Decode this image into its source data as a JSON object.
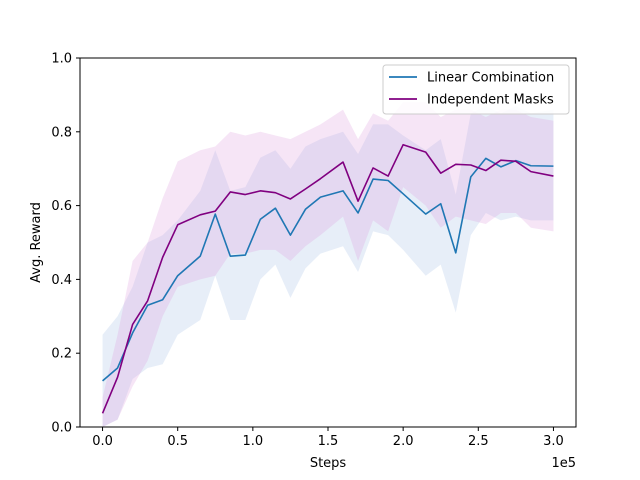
{
  "chart_data": {
    "type": "line",
    "title": "",
    "xlabel": "Steps",
    "ylabel": "Avg. Reward",
    "x_offset_label": "1e5",
    "xlim": [
      -0.15,
      3.15
    ],
    "ylim": [
      0.0,
      1.0
    ],
    "xticks": [
      0.0,
      0.5,
      1.0,
      1.5,
      2.0,
      2.5,
      3.0
    ],
    "xtick_labels": [
      "0.0",
      "0.5",
      "1.0",
      "1.5",
      "2.0",
      "2.5",
      "3.0"
    ],
    "yticks": [
      0.0,
      0.2,
      0.4,
      0.6,
      0.8,
      1.0
    ],
    "ytick_labels": [
      "0.0",
      "0.2",
      "0.4",
      "0.6",
      "0.8",
      "1.0"
    ],
    "grid": false,
    "legend_position": "top-right",
    "x": [
      0.0,
      0.1,
      0.2,
      0.3,
      0.4,
      0.5,
      0.65,
      0.75,
      0.85,
      0.95,
      1.05,
      1.15,
      1.25,
      1.35,
      1.45,
      1.6,
      1.7,
      1.8,
      1.9,
      2.0,
      2.15,
      2.25,
      2.35,
      2.45,
      2.55,
      2.65,
      2.75,
      2.85,
      3.0
    ],
    "series": [
      {
        "name": "Linear Combination",
        "color": "#1f77b4",
        "band_color": "#aec7e8",
        "values": [
          0.125,
          0.16,
          0.255,
          0.33,
          0.345,
          0.41,
          0.463,
          0.577,
          0.463,
          0.466,
          0.563,
          0.593,
          0.52,
          0.59,
          0.623,
          0.64,
          0.58,
          0.672,
          0.668,
          0.632,
          0.577,
          0.605,
          0.472,
          0.678,
          0.728,
          0.705,
          0.722,
          0.708,
          0.707
        ],
        "upper": [
          0.25,
          0.3,
          0.38,
          0.5,
          0.52,
          0.56,
          0.64,
          0.75,
          0.64,
          0.65,
          0.73,
          0.75,
          0.7,
          0.76,
          0.78,
          0.8,
          0.74,
          0.82,
          0.82,
          0.79,
          0.75,
          0.78,
          0.63,
          0.85,
          0.87,
          0.85,
          0.87,
          0.85,
          0.86
        ],
        "lower": [
          0.0,
          0.02,
          0.13,
          0.16,
          0.17,
          0.25,
          0.29,
          0.41,
          0.29,
          0.29,
          0.4,
          0.44,
          0.35,
          0.43,
          0.47,
          0.49,
          0.42,
          0.53,
          0.52,
          0.48,
          0.41,
          0.44,
          0.31,
          0.52,
          0.58,
          0.56,
          0.57,
          0.56,
          0.56
        ]
      },
      {
        "name": "Independent Masks",
        "color": "#800080",
        "band_color": "#dda0dd",
        "values": [
          0.037,
          0.135,
          0.278,
          0.342,
          0.46,
          0.548,
          0.575,
          0.585,
          0.637,
          0.63,
          0.64,
          0.635,
          0.618,
          0.645,
          0.673,
          0.718,
          0.612,
          0.702,
          0.68,
          0.765,
          0.745,
          0.688,
          0.712,
          0.71,
          0.695,
          0.723,
          0.72,
          0.692,
          0.68
        ],
        "upper": [
          0.08,
          0.25,
          0.45,
          0.5,
          0.62,
          0.72,
          0.75,
          0.76,
          0.8,
          0.79,
          0.8,
          0.79,
          0.78,
          0.8,
          0.82,
          0.86,
          0.78,
          0.85,
          0.83,
          0.88,
          0.88,
          0.84,
          0.86,
          0.86,
          0.84,
          0.86,
          0.86,
          0.84,
          0.83
        ],
        "lower": [
          0.0,
          0.02,
          0.11,
          0.18,
          0.3,
          0.38,
          0.4,
          0.41,
          0.47,
          0.47,
          0.48,
          0.48,
          0.45,
          0.49,
          0.52,
          0.57,
          0.45,
          0.56,
          0.53,
          0.65,
          0.6,
          0.54,
          0.57,
          0.56,
          0.55,
          0.58,
          0.58,
          0.54,
          0.53
        ]
      }
    ]
  }
}
